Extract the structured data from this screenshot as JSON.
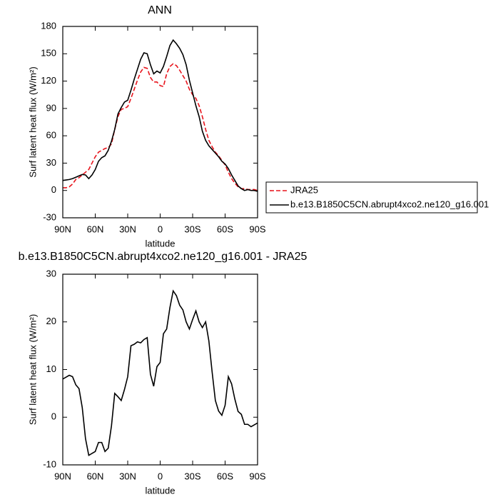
{
  "chart_data": [
    {
      "type": "line",
      "title": "ANN",
      "xlabel": "latitude",
      "ylabel": "Surf latent heat flux (W/m²)",
      "x": [
        90,
        87,
        84,
        81,
        78,
        75,
        72,
        69,
        66,
        63,
        60,
        57,
        54,
        51,
        48,
        45,
        42,
        39,
        36,
        33,
        30,
        27,
        24,
        21,
        18,
        15,
        12,
        9,
        6,
        3,
        0,
        -3,
        -6,
        -9,
        -12,
        -15,
        -18,
        -21,
        -24,
        -27,
        -30,
        -33,
        -36,
        -39,
        -42,
        -45,
        -48,
        -51,
        -54,
        -57,
        -60,
        -63,
        -66,
        -69,
        -72,
        -75,
        -78,
        -81,
        -84,
        -87,
        -90
      ],
      "series": [
        {
          "name": "JRA25",
          "color": "#e8141c",
          "linestyle": "dashed",
          "values": [
            3,
            3,
            4,
            7,
            12,
            14,
            17,
            20,
            23,
            30,
            37,
            42,
            44,
            46,
            47,
            51,
            67,
            81,
            89,
            90,
            92,
            101,
            111,
            121,
            130,
            135,
            134,
            124,
            119,
            119,
            115,
            114,
            128,
            136,
            139,
            137,
            132,
            126,
            120,
            111,
            105,
            101,
            93,
            81,
            67,
            55,
            48,
            42,
            38,
            33,
            28,
            20,
            13,
            8,
            4,
            2,
            2,
            1,
            1,
            1,
            0
          ]
        },
        {
          "name": "b.e13.B1850C5CN.abrupt4xco2.ne120_g16.001",
          "color": "#000000",
          "linestyle": "solid",
          "values": [
            11,
            11.5,
            12,
            13,
            14.5,
            16,
            17.5,
            17,
            13,
            17,
            23,
            32,
            36,
            38,
            44,
            54,
            67,
            84,
            91,
            97,
            99,
            110,
            122,
            133,
            144,
            151,
            150,
            138,
            128,
            131,
            129,
            136,
            147,
            159,
            165,
            161,
            156,
            149,
            138,
            121,
            107,
            93,
            81,
            65,
            55,
            49,
            45,
            41,
            37,
            32,
            29,
            24,
            17,
            11,
            5,
            2,
            0,
            1,
            0,
            0,
            -1
          ]
        }
      ],
      "xlim": [
        90,
        -90
      ],
      "ylim": [
        -30,
        180
      ],
      "xticks": [
        {
          "value": 90,
          "label": "90N"
        },
        {
          "value": 60,
          "label": "60N"
        },
        {
          "value": 30,
          "label": "30N"
        },
        0,
        {
          "value": -30,
          "label": "30S"
        },
        {
          "value": -60,
          "label": "60S"
        },
        {
          "value": -90,
          "label": "90S"
        }
      ],
      "yticks": [
        -30,
        0,
        30,
        60,
        90,
        120,
        150,
        180
      ],
      "legend": "right"
    },
    {
      "type": "line",
      "title": "b.e13.B1850C5CN.abrupt4xco2.ne120_g16.001 - JRA25",
      "xlabel": "latitude",
      "ylabel": "Surf latent heat flux (W/m²)",
      "x": [
        90,
        87,
        84,
        81,
        78,
        75,
        72,
        69,
        66,
        63,
        60,
        57,
        54,
        51,
        48,
        45,
        42,
        39,
        36,
        33,
        30,
        27,
        24,
        21,
        18,
        15,
        12,
        9,
        6,
        3,
        0,
        -3,
        -6,
        -9,
        -12,
        -15,
        -18,
        -21,
        -24,
        -27,
        -30,
        -33,
        -36,
        -39,
        -42,
        -45,
        -48,
        -51,
        -54,
        -57,
        -60,
        -63,
        -66,
        -69,
        -72,
        -75,
        -78,
        -81,
        -84,
        -87,
        -90
      ],
      "series": [
        {
          "color": "#000000",
          "linestyle": "solid",
          "values": [
            8,
            8.4,
            8.8,
            8.5,
            6.8,
            6,
            2,
            -4.5,
            -8,
            -7.6,
            -7.2,
            -5.3,
            -5.3,
            -7.2,
            -6.5,
            -1.8,
            5,
            4.3,
            3.5,
            5.8,
            8.5,
            15,
            15.3,
            15.8,
            15.6,
            16.3,
            16.7,
            9,
            6.5,
            10.6,
            11.5,
            17.5,
            18.5,
            23,
            26.5,
            25.5,
            23.5,
            22.5,
            20,
            18.5,
            20.5,
            22.3,
            20,
            18.8,
            20,
            16,
            9.5,
            3.5,
            1.3,
            0.4,
            2.5,
            8.5,
            7,
            3.8,
            1.2,
            0.6,
            -1.5,
            -1.5,
            -2,
            -1.6,
            -1.2
          ]
        }
      ],
      "xlim": [
        90,
        -90
      ],
      "ylim": [
        -10,
        30
      ],
      "xticks": [
        {
          "value": 90,
          "label": "90N"
        },
        {
          "value": 60,
          "label": "60N"
        },
        {
          "value": 30,
          "label": "30N"
        },
        0,
        {
          "value": -30,
          "label": "30S"
        },
        {
          "value": -60,
          "label": "60S"
        },
        {
          "value": -90,
          "label": "90S"
        }
      ],
      "yticks": [
        -10,
        0,
        10,
        20,
        30
      ]
    }
  ]
}
